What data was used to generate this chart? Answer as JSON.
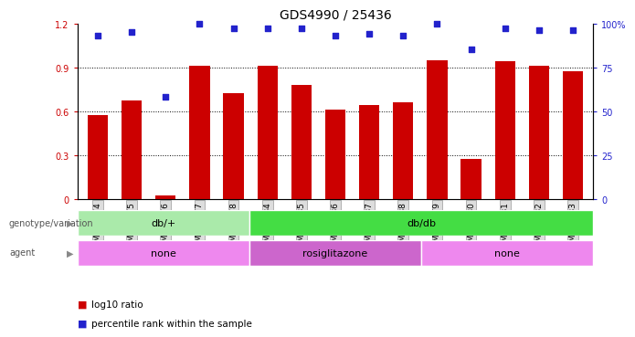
{
  "title": "GDS4990 / 25436",
  "samples": [
    "GSM904674",
    "GSM904675",
    "GSM904676",
    "GSM904677",
    "GSM904678",
    "GSM904684",
    "GSM904685",
    "GSM904686",
    "GSM904687",
    "GSM904688",
    "GSM904679",
    "GSM904680",
    "GSM904681",
    "GSM904682",
    "GSM904683"
  ],
  "log10_ratio": [
    0.57,
    0.67,
    0.02,
    0.91,
    0.72,
    0.91,
    0.78,
    0.61,
    0.64,
    0.66,
    0.95,
    0.27,
    0.94,
    0.91,
    0.87
  ],
  "percentile": [
    93,
    95,
    58,
    100,
    97,
    97,
    97,
    93,
    94,
    93,
    100,
    85,
    97,
    96,
    96
  ],
  "bar_color": "#CC0000",
  "dot_color": "#2222CC",
  "ylim_left": [
    0,
    1.2
  ],
  "ylim_right": [
    0,
    100
  ],
  "yticks_left": [
    0,
    0.3,
    0.6,
    0.9,
    1.2
  ],
  "ytick_labels_left": [
    "0",
    "0.3",
    "0.6",
    "0.9",
    "1.2"
  ],
  "yticks_right": [
    0,
    25,
    50,
    75,
    100
  ],
  "ytick_labels_right": [
    "0",
    "25",
    "50",
    "75",
    "100%"
  ],
  "genotype_groups": [
    {
      "label": "db/+",
      "start": 0,
      "end": 5,
      "color": "#AAEAAA"
    },
    {
      "label": "db/db",
      "start": 5,
      "end": 15,
      "color": "#44DD44"
    }
  ],
  "agent_groups": [
    {
      "label": "none",
      "start": 0,
      "end": 5,
      "color": "#EE88EE"
    },
    {
      "label": "rosiglitazone",
      "start": 5,
      "end": 10,
      "color": "#CC66CC"
    },
    {
      "label": "none",
      "start": 10,
      "end": 15,
      "color": "#EE88EE"
    }
  ],
  "legend_bar_label": "log10 ratio",
  "legend_dot_label": "percentile rank within the sample",
  "genotype_label": "genotype/variation",
  "agent_label": "agent",
  "title_fontsize": 10,
  "tick_fontsize": 7,
  "band_fontsize": 8,
  "legend_fontsize": 7.5
}
